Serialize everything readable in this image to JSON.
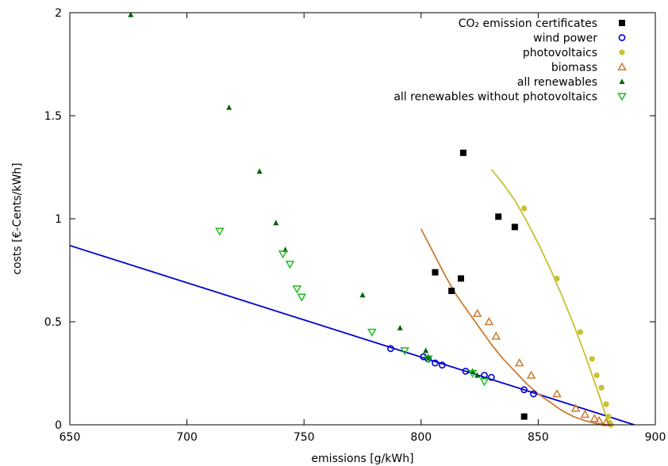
{
  "chart_data": {
    "type": "scatter",
    "xlabel": "emissions [g/kWh]",
    "ylabel": "costs [€-Cents/kWh]",
    "xlim": [
      650,
      900
    ],
    "ylim": [
      0,
      2
    ],
    "xticks": [
      650,
      700,
      750,
      800,
      850,
      900
    ],
    "xtick_labels": [
      "650",
      "700",
      "750",
      "800",
      "850",
      "900"
    ],
    "yticks": [
      0,
      0.5,
      1,
      1.5,
      2
    ],
    "ytick_labels": [
      "0",
      "0.5",
      "1",
      "1.5",
      "2"
    ],
    "grid": false,
    "legend_position": "top-right",
    "series": [
      {
        "name": "CO₂ emission certificates",
        "marker": "square-filled",
        "color": "#000000",
        "points": [
          [
            818,
            1.32
          ],
          [
            833,
            1.01
          ],
          [
            840,
            0.96
          ],
          [
            806,
            0.74
          ],
          [
            817,
            0.71
          ],
          [
            813,
            0.65
          ],
          [
            844,
            0.04
          ]
        ]
      },
      {
        "name": "wind power",
        "marker": "circle-open",
        "color": "#0000cc",
        "fit_line": [
          [
            650,
            0.87
          ],
          [
            891,
            0.0
          ]
        ],
        "points": [
          [
            787,
            0.37
          ],
          [
            801,
            0.33
          ],
          [
            803,
            0.32
          ],
          [
            806,
            0.3
          ],
          [
            809,
            0.29
          ],
          [
            819,
            0.26
          ],
          [
            827,
            0.24
          ],
          [
            830,
            0.23
          ],
          [
            844,
            0.17
          ],
          [
            848,
            0.15
          ]
        ]
      },
      {
        "name": "photovoltaics",
        "marker": "circle-filled",
        "color": "#c8c032",
        "fit_curve": [
          [
            830,
            1.24
          ],
          [
            835,
            1.17
          ],
          [
            840,
            1.09
          ],
          [
            845,
            0.99
          ],
          [
            850,
            0.88
          ],
          [
            855,
            0.76
          ],
          [
            860,
            0.63
          ],
          [
            865,
            0.49
          ],
          [
            870,
            0.34
          ],
          [
            874,
            0.21
          ],
          [
            877,
            0.11
          ],
          [
            879,
            0.04
          ],
          [
            880,
            0.0
          ]
        ],
        "points": [
          [
            844,
            1.05
          ],
          [
            858,
            0.71
          ],
          [
            868,
            0.45
          ],
          [
            873,
            0.32
          ],
          [
            875,
            0.24
          ],
          [
            877,
            0.18
          ],
          [
            879,
            0.1
          ],
          [
            880,
            0.04
          ],
          [
            880.5,
            0.01
          ],
          [
            881,
            0.0
          ]
        ]
      },
      {
        "name": "biomass",
        "marker": "triangle-up-open",
        "color": "#cc7a2f",
        "fit_curve": [
          [
            800,
            0.95
          ],
          [
            805,
            0.84
          ],
          [
            810,
            0.73
          ],
          [
            815,
            0.63
          ],
          [
            820,
            0.55
          ],
          [
            825,
            0.47
          ],
          [
            830,
            0.39
          ],
          [
            835,
            0.32
          ],
          [
            840,
            0.26
          ],
          [
            845,
            0.2
          ],
          [
            850,
            0.15
          ],
          [
            855,
            0.11
          ],
          [
            860,
            0.07
          ],
          [
            865,
            0.04
          ],
          [
            870,
            0.02
          ],
          [
            875,
            0.005
          ],
          [
            880,
            0.0
          ]
        ],
        "points": [
          [
            824,
            0.54
          ],
          [
            829,
            0.5
          ],
          [
            832,
            0.43
          ],
          [
            842,
            0.3
          ],
          [
            847,
            0.24
          ],
          [
            858,
            0.15
          ],
          [
            866,
            0.08
          ],
          [
            870,
            0.05
          ],
          [
            874,
            0.03
          ],
          [
            876,
            0.02
          ],
          [
            879,
            0.01
          ]
        ]
      },
      {
        "name": "all renewables",
        "marker": "triangle-up-filled",
        "color": "#006400",
        "points": [
          [
            676,
            1.99
          ],
          [
            718,
            1.54
          ],
          [
            731,
            1.23
          ],
          [
            738,
            0.98
          ],
          [
            742,
            0.85
          ],
          [
            775,
            0.63
          ],
          [
            791,
            0.47
          ],
          [
            802,
            0.36
          ],
          [
            803,
            0.33
          ],
          [
            822,
            0.26
          ],
          [
            824,
            0.24
          ]
        ]
      },
      {
        "name": "all renewables without photovoltaics",
        "marker": "triangle-down-open",
        "color": "#22bb22",
        "points": [
          [
            714,
            0.94
          ],
          [
            741,
            0.83
          ],
          [
            744,
            0.78
          ],
          [
            747,
            0.66
          ],
          [
            749,
            0.62
          ],
          [
            779,
            0.45
          ],
          [
            793,
            0.36
          ],
          [
            803,
            0.32
          ],
          [
            822,
            0.25
          ],
          [
            827,
            0.21
          ]
        ]
      }
    ]
  }
}
